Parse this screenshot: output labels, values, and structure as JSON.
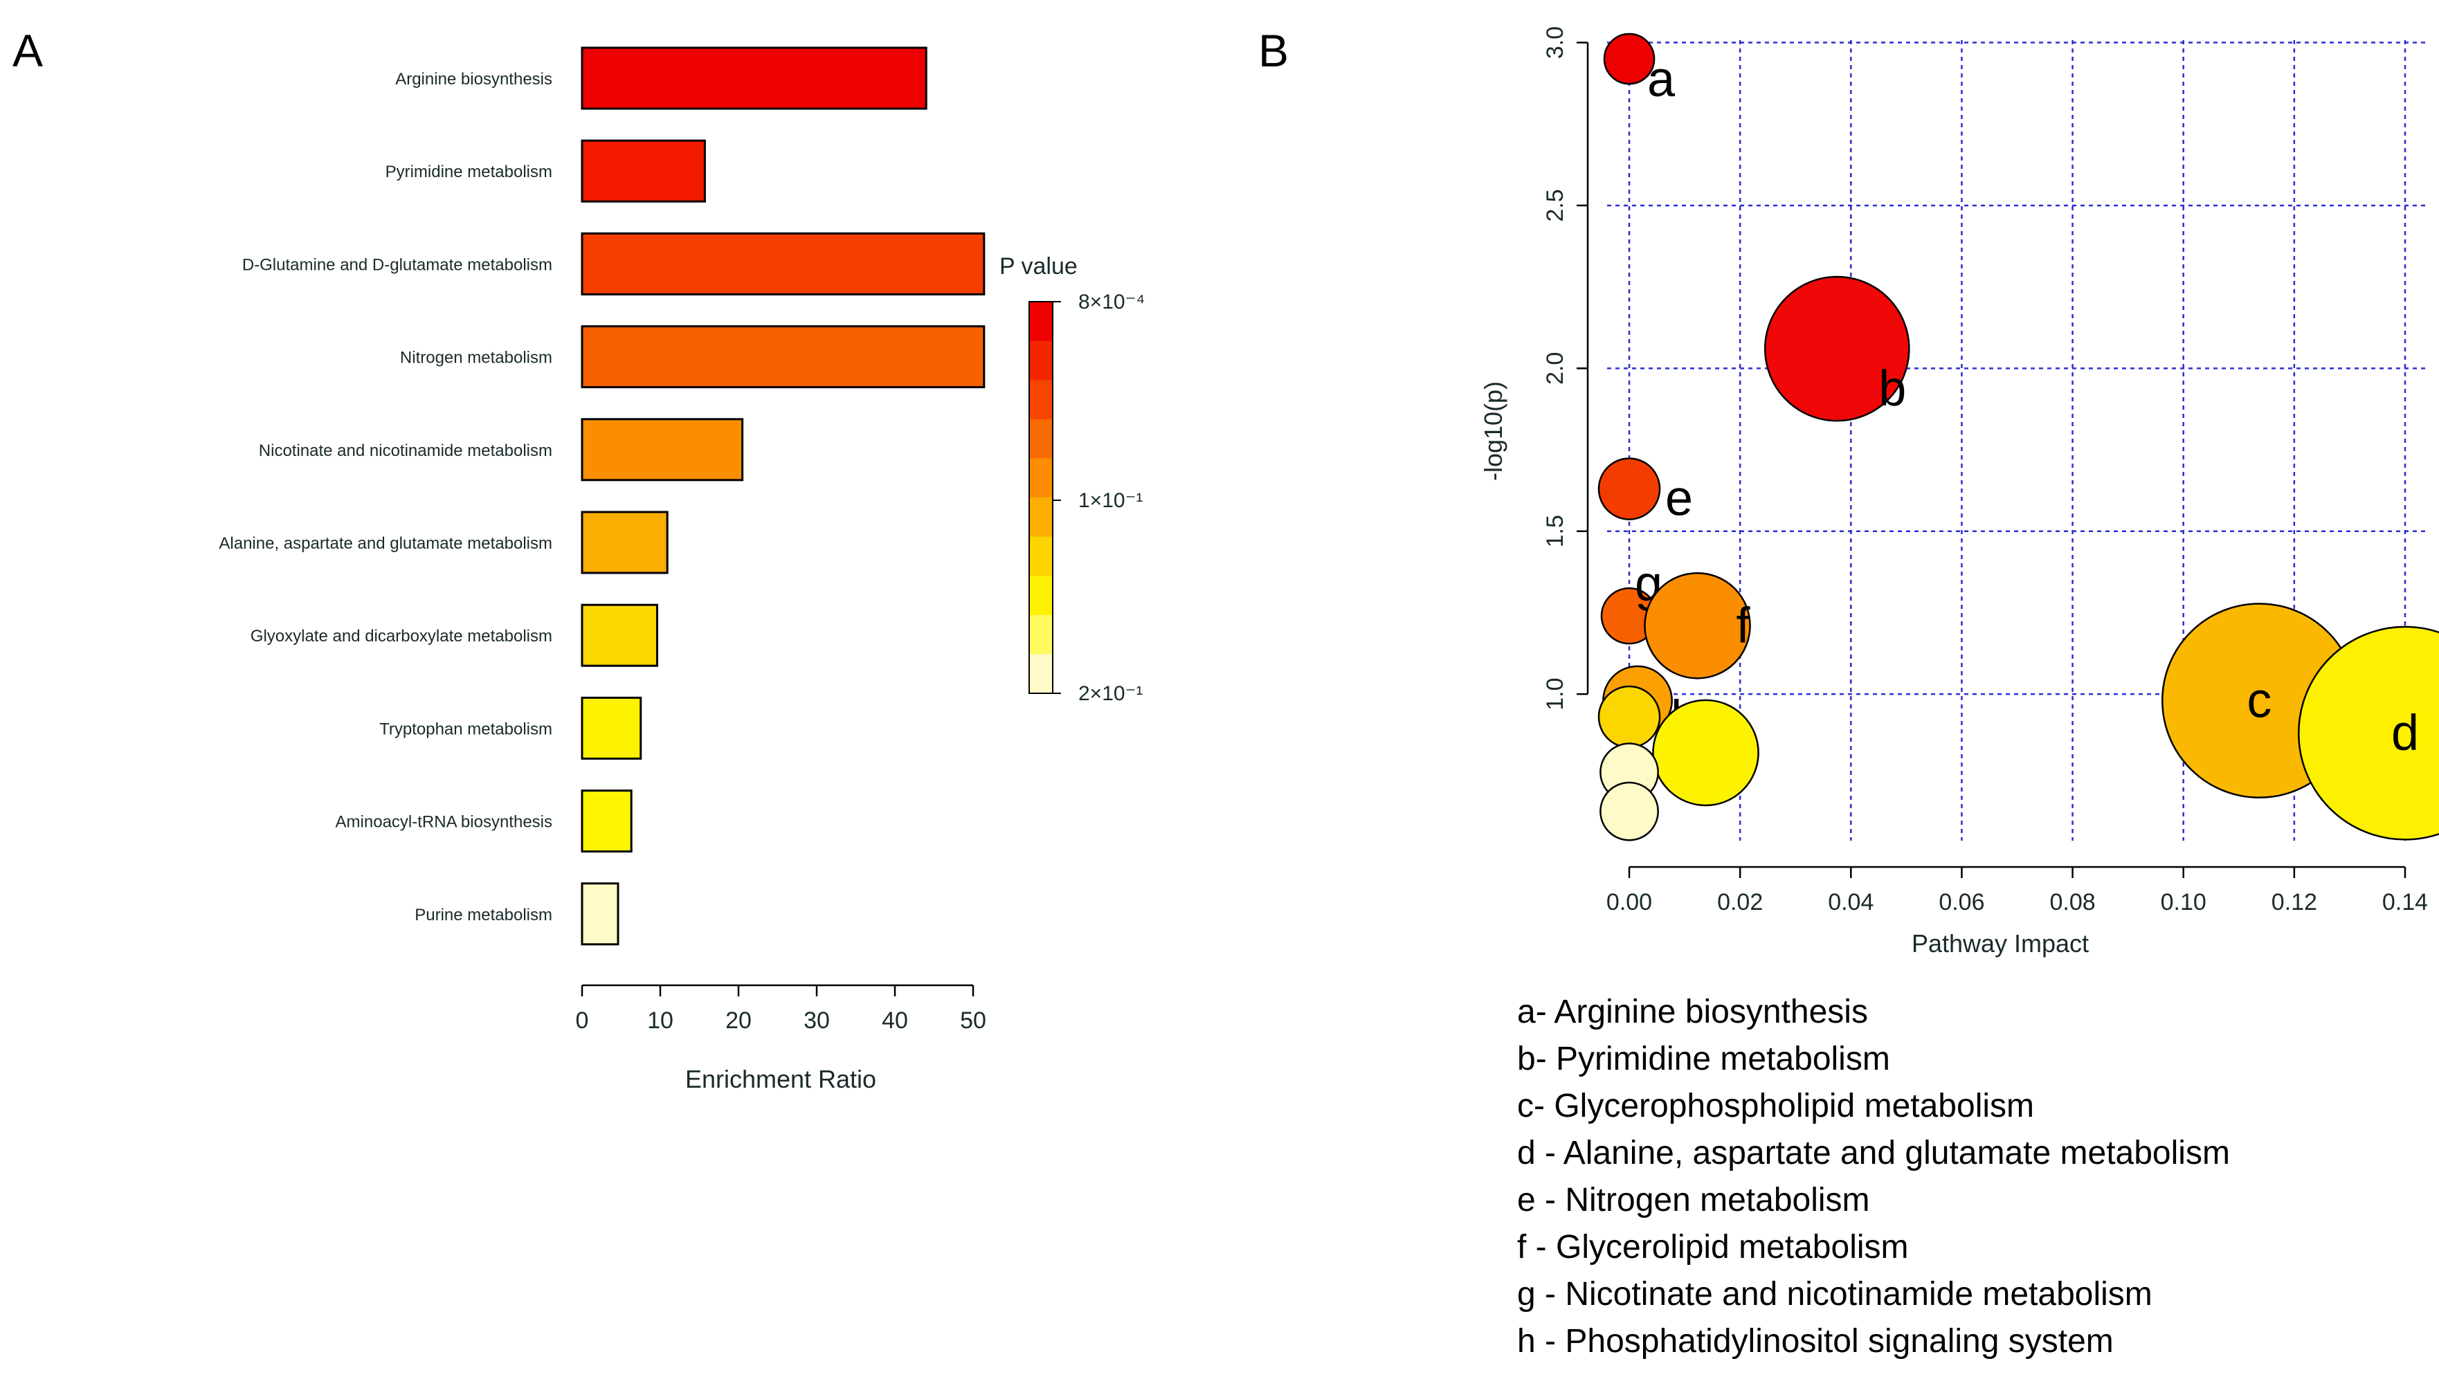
{
  "panels": {
    "a": "A",
    "b": "B"
  },
  "chart_data": [
    {
      "type": "bar",
      "orientation": "horizontal",
      "title": "",
      "xlabel": "Enrichment Ratio",
      "ylabel": "",
      "xlim": [
        0,
        50
      ],
      "xticks": [
        "0",
        "10",
        "20",
        "30",
        "40",
        "50"
      ],
      "categories": [
        "Arginine biosynthesis",
        "Pyrimidine metabolism",
        "D-Glutamine and D-glutamate metabolism",
        "Nitrogen metabolism",
        "Nicotinate and nicotinamide metabolism",
        "Alanine, aspartate and glutamate metabolism",
        "Glyoxylate and dicarboxylate metabolism",
        "Tryptophan metabolism",
        "Aminoacyl-tRNA biosynthesis",
        "Purine metabolism"
      ],
      "values": [
        44,
        15.7,
        51.4,
        51.4,
        20.5,
        10.9,
        9.6,
        7.5,
        6.3,
        4.6
      ],
      "colors": [
        "#ee0000",
        "#f41a00",
        "#f53d00",
        "#f76000",
        "#fa8e00",
        "#fbad00",
        "#fcd600",
        "#fdf300",
        "#fef600",
        "#fffbc8"
      ],
      "legend": {
        "title": "P value",
        "ticks": [
          "8×10⁻⁴",
          "1×10⁻¹",
          "2×10⁻¹"
        ],
        "gradient": [
          "#ee0000",
          "#f32500",
          "#f54500",
          "#f86a00",
          "#fa8e00",
          "#fbad00",
          "#fcd400",
          "#fdf000",
          "#fefa60",
          "#fffbc8"
        ],
        "placement": "right"
      }
    },
    {
      "type": "scatter",
      "title": "",
      "xlabel": "Pathway Impact",
      "ylabel": "-log10(p)",
      "xlim": [
        -0.004,
        0.144
      ],
      "ylim": [
        0.55,
        3.05
      ],
      "xticks": [
        "0.00",
        "0.02",
        "0.04",
        "0.06",
        "0.08",
        "0.10",
        "0.12",
        "0.14"
      ],
      "yticks": [
        "1.0",
        "1.5",
        "2.0",
        "2.5",
        "3.0"
      ],
      "grid": true,
      "points": [
        {
          "x": 0.0,
          "y": 2.95,
          "size": 0.0045,
          "color": "#ee0000",
          "label": "a"
        },
        {
          "x": 0.0375,
          "y": 2.06,
          "size": 0.013,
          "color": "#f00808",
          "label": "b"
        },
        {
          "x": 0.0,
          "y": 1.63,
          "size": 0.0055,
          "color": "#f33c00",
          "label": "e"
        },
        {
          "x": 0.0,
          "y": 1.24,
          "size": 0.005,
          "color": "#f76000",
          "label": "g"
        },
        {
          "x": 0.0123,
          "y": 1.21,
          "size": 0.0095,
          "color": "#fa8e00",
          "label": "f"
        },
        {
          "x": 0.0015,
          "y": 0.98,
          "size": 0.0062,
          "color": "#fba000",
          "label": "h"
        },
        {
          "x": 0.1137,
          "y": 0.98,
          "size": 0.0175,
          "color": "#fbb800",
          "label": "c"
        },
        {
          "x": 0.14,
          "y": 0.88,
          "size": 0.0192,
          "color": "#fdf000",
          "label": "d"
        },
        {
          "x": 0.0,
          "y": 0.93,
          "size": 0.0055,
          "color": "#fcd600",
          "label": ""
        },
        {
          "x": 0.0138,
          "y": 0.82,
          "size": 0.0095,
          "color": "#fdf300",
          "label": ""
        },
        {
          "x": 0.0,
          "y": 0.76,
          "size": 0.0052,
          "color": "#fffbc8",
          "label": ""
        },
        {
          "x": 0.0,
          "y": 0.64,
          "size": 0.0052,
          "color": "#fffbc8",
          "label": ""
        }
      ],
      "key": [
        "a-  Arginine biosynthesis",
        "b-  Pyrimidine metabolism",
        "c-  Glycerophospholipid metabolism",
        "d - Alanine, aspartate and glutamate metabolism",
        "e - Nitrogen metabolism",
        "f -  Glycerolipid metabolism",
        "g - Nicotinate and nicotinamide metabolism",
        "h - Phosphatidylinositol signaling system"
      ]
    }
  ]
}
